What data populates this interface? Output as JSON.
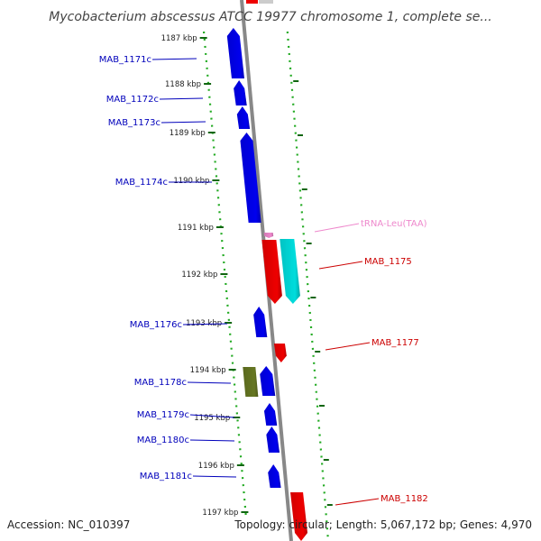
{
  "title": "Mycobacterium abscessus ATCC 19977 chromosome 1, complete se...",
  "ticks": [
    {
      "label": "1187 kbp"
    },
    {
      "label": "1188 kbp"
    },
    {
      "label": "1189 kbp"
    },
    {
      "label": "1190 kbp"
    },
    {
      "label": "1191 kbp"
    },
    {
      "label": "1192 kbp"
    },
    {
      "label": "1193 kbp"
    },
    {
      "label": "1194 kbp"
    },
    {
      "label": "1195 kbp"
    },
    {
      "label": "1196 kbp"
    },
    {
      "label": "1197 kbp"
    }
  ],
  "features": [
    {
      "name": "MAB_1171c",
      "strand": "minus",
      "type": "CDS",
      "color": "#0000ee",
      "label_color": "#0000bb"
    },
    {
      "name": "MAB_1172c",
      "strand": "minus",
      "type": "CDS",
      "color": "#0000ee",
      "label_color": "#0000bb"
    },
    {
      "name": "MAB_1173c",
      "strand": "minus",
      "type": "CDS",
      "color": "#0000ee",
      "label_color": "#0000bb"
    },
    {
      "name": "MAB_1174c",
      "strand": "minus",
      "type": "CDS",
      "color": "#0000ee",
      "label_color": "#0000bb"
    },
    {
      "name": "tRNA-Leu(TAA)",
      "strand": "plus",
      "type": "tRNA",
      "color": "#ee88cc",
      "label_color": "#ee88cc"
    },
    {
      "name": "MAB_1175",
      "strand": "plus",
      "type": "CDS",
      "color": "#ee0000",
      "label_color": "#cc0000"
    },
    {
      "name": "",
      "strand": "plus",
      "type": "misc",
      "color": "#00dddd",
      "label_color": "#00aaaa"
    },
    {
      "name": "MAB_1176c",
      "strand": "minus",
      "type": "CDS",
      "color": "#0000ee",
      "label_color": "#0000bb"
    },
    {
      "name": "MAB_1177",
      "strand": "plus",
      "type": "CDS",
      "color": "#ee0000",
      "label_color": "#cc0000"
    },
    {
      "name": "",
      "strand": "minus",
      "type": "misc",
      "color": "#667722",
      "label_color": "#667722"
    },
    {
      "name": "MAB_1178c",
      "strand": "minus",
      "type": "CDS",
      "color": "#0000ee",
      "label_color": "#0000bb"
    },
    {
      "name": "MAB_1179c",
      "strand": "minus",
      "type": "CDS",
      "color": "#0000ee",
      "label_color": "#0000bb"
    },
    {
      "name": "MAB_1180c",
      "strand": "minus",
      "type": "CDS",
      "color": "#0000ee",
      "label_color": "#0000bb"
    },
    {
      "name": "MAB_1181c",
      "strand": "minus",
      "type": "CDS",
      "color": "#0000ee",
      "label_color": "#0000bb"
    },
    {
      "name": "MAB_1182",
      "strand": "plus",
      "type": "CDS",
      "color": "#ee0000",
      "label_color": "#cc0000"
    }
  ],
  "colors": {
    "backbone": "#888888",
    "scale_dots": "#22aa22",
    "tick_marks": "#116611"
  },
  "footer": {
    "accession": "Accession: NC_010397",
    "summary": "Topology: circular; Length: 5,067,172 bp; Genes: 4,970"
  }
}
